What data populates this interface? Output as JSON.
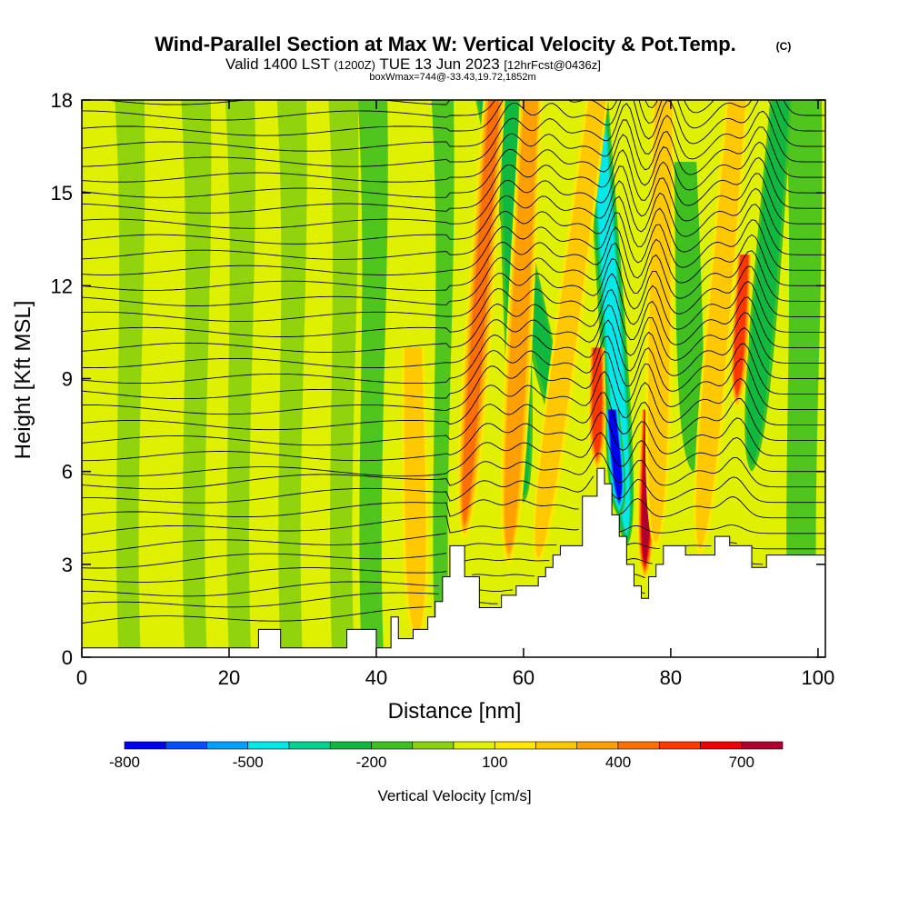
{
  "header": {
    "title": "Wind-Parallel Section at Max W: Vertical Velocity & Pot.Temp.",
    "copyright": "(C)",
    "valid_main": "Valid 1400 LST",
    "valid_utc": "(1200Z)",
    "valid_date": "TUE 13 Jun 2023",
    "forecast": "[12hrFcst@0436z]",
    "boxmax": "boxWmax=744@-33.43,19.72,1852m"
  },
  "chart_data": {
    "type": "heatmap",
    "title": "Wind-Parallel Section at Max W: Vertical Velocity & Pot.Temp.",
    "xlabel": "Distance [nm]",
    "ylabel": "Height [Kft MSL]",
    "xlim": [
      0,
      101
    ],
    "ylim": [
      0,
      18
    ],
    "x_ticks": [
      0,
      20,
      40,
      60,
      80,
      100
    ],
    "x_tick_labels": [
      "0",
      "20",
      "40",
      "60",
      "80",
      "100"
    ],
    "y_ticks": [
      0,
      3,
      6,
      9,
      12,
      15,
      18
    ],
    "y_tick_labels": [
      "0",
      "3",
      "6",
      "9",
      "12",
      "15",
      "18"
    ],
    "colorbar": {
      "label": "Vertical Velocity [cm/s]",
      "colors": [
        "#0000f0",
        "#0050ff",
        "#00a0ff",
        "#00e8e8",
        "#00d090",
        "#10b840",
        "#40c020",
        "#88d010",
        "#dff000",
        "#ffe800",
        "#ffc800",
        "#ffa000",
        "#ff7000",
        "#ff3800",
        "#f00000",
        "#b00030"
      ],
      "ticks": [
        -800,
        -500,
        -200,
        100,
        400,
        700
      ],
      "tick_labels": [
        "-800",
        "-500",
        "-200",
        "100",
        "400",
        "700"
      ],
      "range": [
        -800,
        800
      ]
    },
    "terrain_kft": [
      [
        0,
        0.3
      ],
      [
        20,
        0.3
      ],
      [
        24,
        0.3
      ],
      [
        24,
        0.9
      ],
      [
        27,
        0.9
      ],
      [
        27,
        0.3
      ],
      [
        36,
        0.3
      ],
      [
        36,
        0.9
      ],
      [
        40,
        0.9
      ],
      [
        40,
        0.3
      ],
      [
        42,
        0.3
      ],
      [
        42,
        1.3
      ],
      [
        43,
        1.3
      ],
      [
        43,
        0.6
      ],
      [
        45,
        0.6
      ],
      [
        45,
        0.9
      ],
      [
        47,
        0.9
      ],
      [
        47,
        1.3
      ],
      [
        48,
        1.3
      ],
      [
        48,
        1.8
      ],
      [
        49,
        1.8
      ],
      [
        49,
        2.6
      ],
      [
        50,
        2.6
      ],
      [
        50,
        3.6
      ],
      [
        52,
        3.6
      ],
      [
        52,
        2.6
      ],
      [
        54,
        2.6
      ],
      [
        54,
        1.6
      ],
      [
        57,
        1.6
      ],
      [
        57,
        2.0
      ],
      [
        59,
        2.0
      ],
      [
        59,
        2.3
      ],
      [
        62,
        2.3
      ],
      [
        62,
        2.6
      ],
      [
        63,
        2.6
      ],
      [
        63,
        2.9
      ],
      [
        64,
        2.9
      ],
      [
        64,
        3.3
      ],
      [
        65,
        3.3
      ],
      [
        65,
        3.6
      ],
      [
        68,
        3.6
      ],
      [
        68,
        5.2
      ],
      [
        70,
        5.2
      ],
      [
        70,
        6.1
      ],
      [
        71,
        6.1
      ],
      [
        71,
        5.6
      ],
      [
        72,
        5.6
      ],
      [
        72,
        4.6
      ],
      [
        73,
        4.6
      ],
      [
        73,
        3.9
      ],
      [
        74,
        3.9
      ],
      [
        74,
        3.0
      ],
      [
        75,
        3.0
      ],
      [
        75,
        2.3
      ],
      [
        76,
        2.3
      ],
      [
        76,
        1.9
      ],
      [
        77,
        1.9
      ],
      [
        77,
        2.6
      ],
      [
        78,
        2.6
      ],
      [
        78,
        3.0
      ],
      [
        79,
        3.0
      ],
      [
        79,
        3.6
      ],
      [
        82,
        3.6
      ],
      [
        82,
        3.3
      ],
      [
        86,
        3.3
      ],
      [
        86,
        3.9
      ],
      [
        88,
        3.9
      ],
      [
        88,
        3.6
      ],
      [
        91,
        3.6
      ],
      [
        91,
        2.9
      ],
      [
        93,
        2.9
      ],
      [
        93,
        3.3
      ],
      [
        101,
        3.3
      ]
    ],
    "updraft_cores": [
      {
        "x_base": 45.5,
        "x_top": 45.0,
        "z_base": 0.5,
        "z_top": 10.0,
        "w": 280
      },
      {
        "x_base": 52,
        "x_top": 56,
        "z_base": 3.8,
        "z_top": 18,
        "w": 400
      },
      {
        "x_base": 58,
        "x_top": 61,
        "z_base": 3,
        "z_top": 18,
        "w": 320
      },
      {
        "x_base": 62,
        "x_top": 70,
        "z_base": 3,
        "z_top": 18,
        "w": 250
      },
      {
        "x_base": 70,
        "x_top": 70,
        "z_base": 6,
        "z_top": 10,
        "w": 560
      },
      {
        "x_base": 76.5,
        "x_top": 77,
        "z_base": 2.5,
        "z_top": 8,
        "w": 744
      },
      {
        "x_base": 78,
        "x_top": 79,
        "z_base": 3.5,
        "z_top": 18,
        "w": 260
      },
      {
        "x_base": 84,
        "x_top": 89,
        "z_base": 3.3,
        "z_top": 18,
        "w": 280
      },
      {
        "x_base": 89,
        "x_top": 90,
        "z_base": 8,
        "z_top": 13,
        "w": 580
      }
    ],
    "downdraft_cores": [
      {
        "x_base": 74,
        "x_top": 70,
        "z_base": 3.6,
        "z_top": 18,
        "w": -450
      },
      {
        "x_base": 73,
        "x_top": 72,
        "z_base": 4.5,
        "z_top": 8,
        "w": -780
      },
      {
        "x_base": 65,
        "x_top": 55,
        "z_base": 7,
        "z_top": 18,
        "w": -300
      },
      {
        "x_base": 60,
        "x_top": 58,
        "z_base": 5,
        "z_top": 18,
        "w": -220
      },
      {
        "x_base": 91,
        "x_top": 95,
        "z_base": 6,
        "z_top": 18,
        "w": -210
      },
      {
        "x_base": 83,
        "x_top": 82,
        "z_base": 6,
        "z_top": 16,
        "w": -200
      }
    ],
    "isentrope_levels_kft": [
      1.1,
      1.6,
      2.0,
      2.5,
      3.0,
      3.5,
      4.0,
      4.5,
      5.0,
      5.5,
      6.0,
      6.5,
      7.0,
      7.5,
      8.0,
      8.5,
      9.0,
      9.5,
      10.0,
      10.5,
      11.0,
      11.5,
      12.0,
      12.5,
      13.0,
      13.5,
      14.0,
      14.5,
      15.0,
      15.5,
      16.0,
      16.5,
      17.0,
      17.5,
      18.0
    ]
  }
}
